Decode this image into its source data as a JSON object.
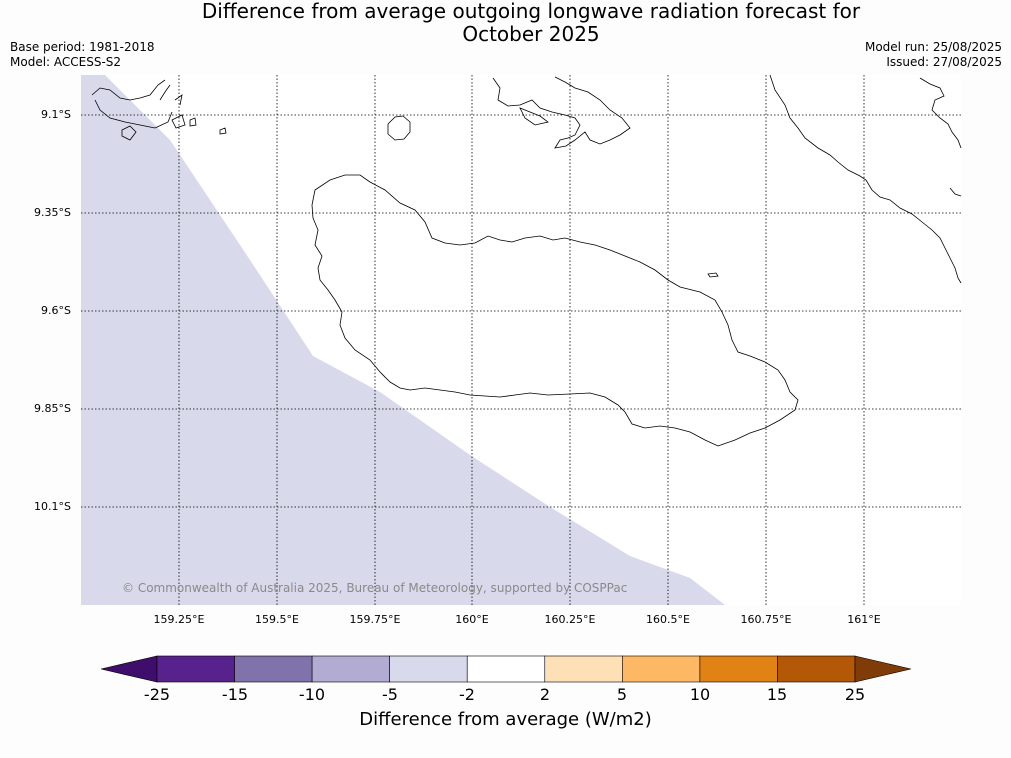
{
  "title_line1": "Difference from average outgoing longwave radiation forecast for",
  "title_line2": "October 2025",
  "meta": {
    "base_period": "Base period: 1981-2018",
    "model": "Model: ACCESS-S2",
    "model_run": "Model run: 25/08/2025",
    "issued": "Issued: 27/08/2025"
  },
  "lat_labels": [
    "9.1°S",
    "9.35°S",
    "9.6°S",
    "9.85°S",
    "10.1°S"
  ],
  "lon_labels": [
    "159.25°E",
    "159.5°E",
    "159.75°E",
    "160°E",
    "160.25°E",
    "160.5°E",
    "160.75°E",
    "161°E"
  ],
  "copyright": "© Commonwealth of Australia 2025, Bureau of Meteorology, supported by COSPPac",
  "colorbar": {
    "ticks": [
      "-25",
      "-15",
      "-10",
      "-5",
      "-2",
      "2",
      "5",
      "10",
      "15",
      "25"
    ],
    "colors": [
      "#3f0d6b",
      "#58228d",
      "#8073ac",
      "#b2abd2",
      "#d8d9ea",
      "#ffffff",
      "#fee0b6",
      "#fdb863",
      "#e08214",
      "#b35806",
      "#7f3b08"
    ],
    "title": "Difference from average (W/m2)"
  }
}
